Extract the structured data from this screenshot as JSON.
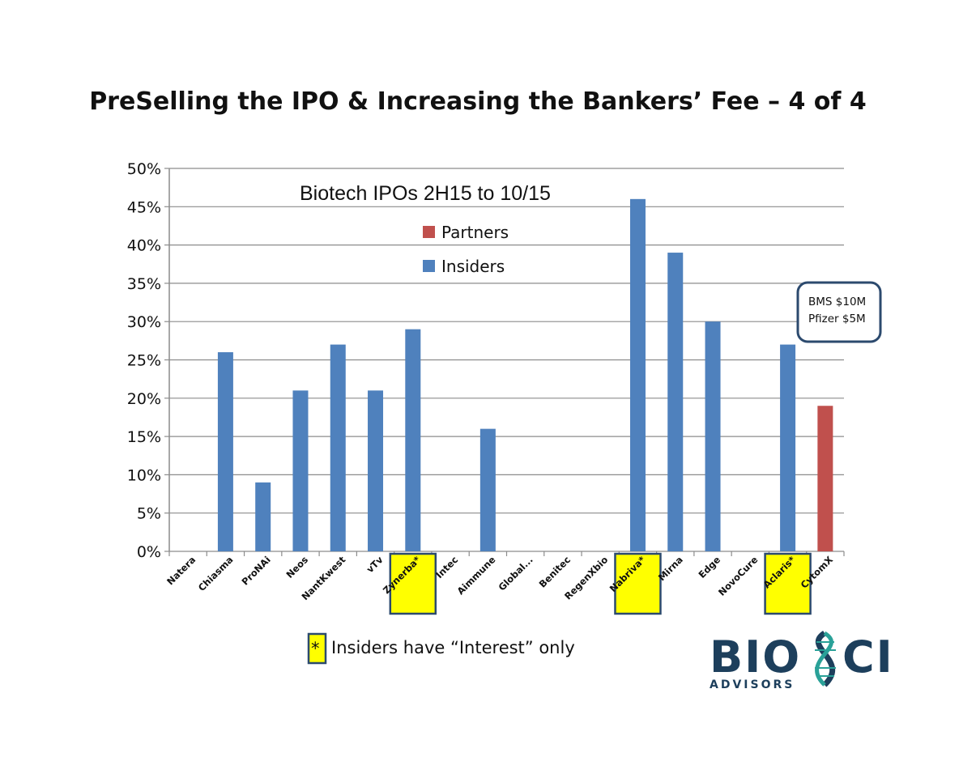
{
  "slide": {
    "title": "PreSelling the IPO & Increasing the Bankers’ Fee – 4 of 4",
    "footnote": {
      "symbol": "*",
      "text": "Insiders have “Interest” only"
    },
    "logo": {
      "big_left": "BIO",
      "big_right": "CI",
      "small": "ADVISORS"
    }
  },
  "chart_data": {
    "type": "bar",
    "title": "Biotech IPOs 2H15 to 10/15",
    "categories": [
      "Natera",
      "Chiasma",
      "ProNAi",
      "Neos",
      "NantKwest",
      "vTv",
      "Zynerba*",
      "Intec",
      "Aimmune",
      "Global...",
      "Benitec",
      "RegenXbio",
      "Nabriva*",
      "Mirna",
      "Edge",
      "NovoCure",
      "Aclaris*",
      "CytomX"
    ],
    "highlighted_categories": [
      "Zynerba*",
      "Nabriva*",
      "Aclaris*"
    ],
    "series": [
      {
        "name": "Partners",
        "color": "#c0504d",
        "values": [
          0,
          0,
          0,
          0,
          0,
          0,
          0,
          0,
          0,
          0,
          0,
          0,
          0,
          0,
          0,
          0,
          0,
          19
        ]
      },
      {
        "name": "Insiders",
        "color": "#4f81bd",
        "values": [
          0,
          26,
          9,
          21,
          27,
          21,
          29,
          0,
          16,
          0,
          0,
          0,
          46,
          39,
          30,
          0,
          27,
          0
        ]
      }
    ],
    "ylim": [
      0,
      50
    ],
    "yticks": [
      "0%",
      "5%",
      "10%",
      "15%",
      "20%",
      "25%",
      "30%",
      "35%",
      "40%",
      "45%",
      "50%"
    ],
    "grid": true,
    "legend": "top-center",
    "annotation": {
      "lines": [
        "BMS $10M",
        "Pfizer $5M"
      ],
      "target": "CytomX"
    },
    "highlight_color": "#ffff00"
  }
}
